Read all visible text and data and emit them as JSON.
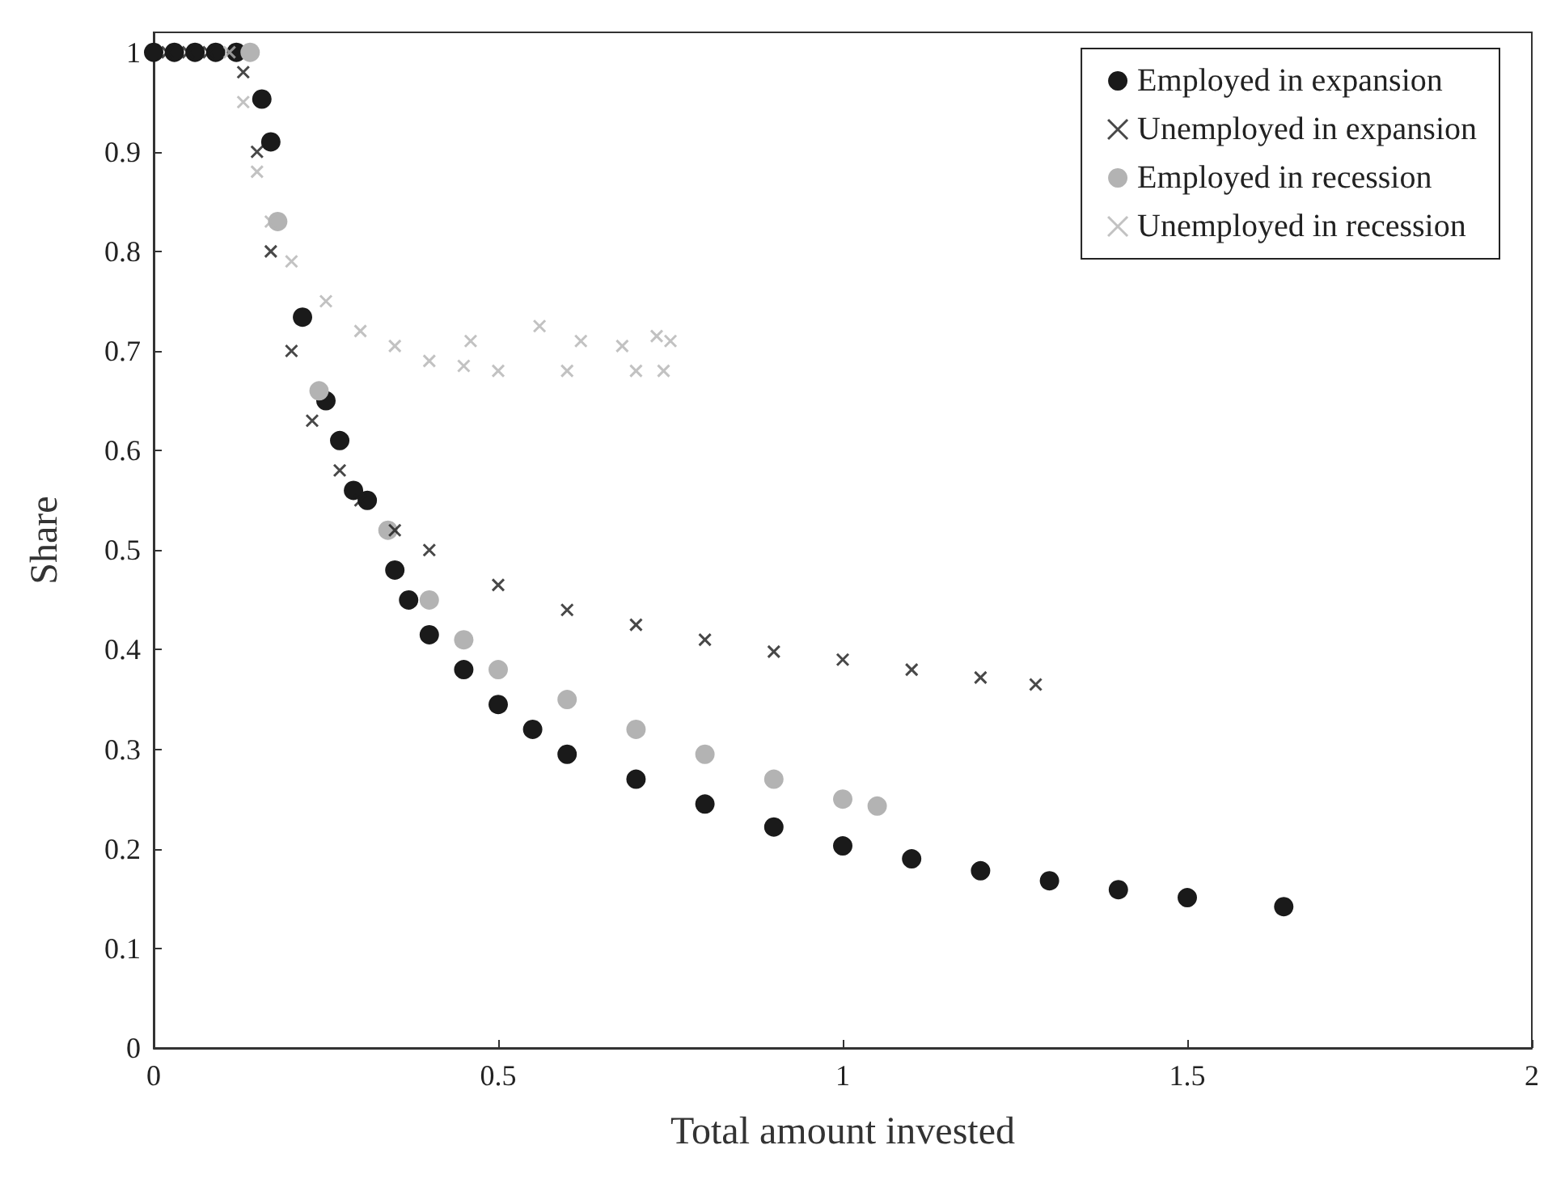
{
  "chart_data": {
    "type": "scatter",
    "xlabel": "Total amount invested",
    "ylabel": "Share",
    "xlim": [
      0,
      2
    ],
    "ylim": [
      0,
      1.02
    ],
    "xticks": [
      0,
      0.5,
      1,
      1.5,
      2
    ],
    "yticks": [
      0,
      0.1,
      0.2,
      0.3,
      0.4,
      0.5,
      0.6,
      0.7,
      0.8,
      0.9,
      1
    ],
    "grid": false,
    "legend": "top right",
    "series": [
      {
        "name": "Employed in expansion",
        "color": "#1a1a1a",
        "marker": "circle",
        "x": [
          0,
          0.03,
          0.06,
          0.09,
          0.12,
          0.157,
          0.17,
          0.216,
          0.25,
          0.27,
          0.29,
          0.31,
          0.35,
          0.37,
          0.4,
          0.45,
          0.5,
          0.55,
          0.6,
          0.7,
          0.8,
          0.9,
          1.0,
          1.1,
          1.2,
          1.3,
          1.4,
          1.5,
          1.64
        ],
        "values": [
          1,
          1,
          1,
          1,
          1,
          0.953,
          0.91,
          0.734,
          0.65,
          0.61,
          0.56,
          0.55,
          0.48,
          0.45,
          0.415,
          0.38,
          0.345,
          0.32,
          0.295,
          0.27,
          0.245,
          0.222,
          0.203,
          0.19,
          0.178,
          0.168,
          0.159,
          0.151,
          0.142
        ]
      },
      {
        "name": "Unemployed in expansion",
        "color": "#1a1a1a",
        "marker": "cross",
        "x": [
          0.02,
          0.05,
          0.08,
          0.13,
          0.15,
          0.17,
          0.2,
          0.23,
          0.27,
          0.3,
          0.35,
          0.4,
          0.5,
          0.6,
          0.7,
          0.8,
          0.9,
          1.0,
          1.1,
          1.2,
          1.28
        ],
        "values": [
          1,
          1,
          1,
          0.98,
          0.9,
          0.8,
          0.7,
          0.63,
          0.58,
          0.55,
          0.52,
          0.5,
          0.465,
          0.44,
          0.425,
          0.41,
          0.398,
          0.39,
          0.38,
          0.372,
          0.365
        ]
      },
      {
        "name": "Employed in recession",
        "color": "#b3b3b3",
        "marker": "circle",
        "x": [
          0.14,
          0.18,
          0.24,
          0.34,
          0.4,
          0.45,
          0.5,
          0.6,
          0.7,
          0.8,
          0.9,
          1.0,
          1.05
        ],
        "values": [
          1,
          0.83,
          0.66,
          0.52,
          0.45,
          0.41,
          0.38,
          0.35,
          0.32,
          0.295,
          0.27,
          0.25,
          0.243
        ]
      },
      {
        "name": "Unemployed in recession",
        "color": "#b3b3b3",
        "marker": "cross",
        "x": [
          0.11,
          0.13,
          0.15,
          0.17,
          0.2,
          0.25,
          0.3,
          0.35,
          0.4,
          0.45,
          0.46,
          0.5,
          0.56,
          0.6,
          0.62,
          0.68,
          0.7,
          0.73,
          0.74,
          0.75
        ],
        "values": [
          1,
          0.95,
          0.88,
          0.83,
          0.79,
          0.75,
          0.72,
          0.705,
          0.69,
          0.685,
          0.71,
          0.68,
          0.725,
          0.68,
          0.71,
          0.705,
          0.68,
          0.715,
          0.68,
          0.71
        ]
      }
    ]
  }
}
